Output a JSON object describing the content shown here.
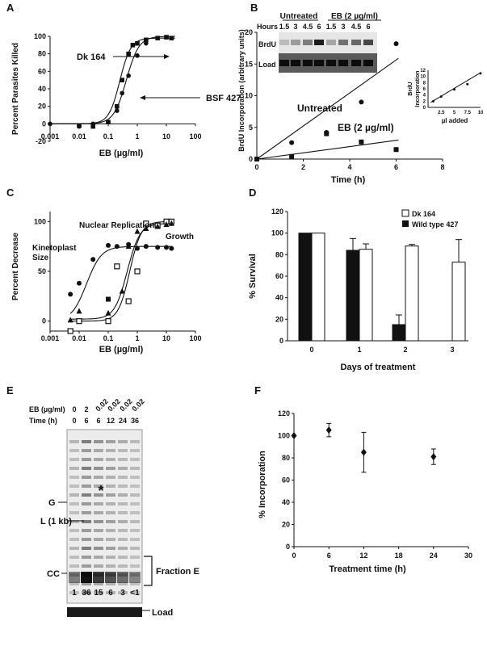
{
  "chart_data": [
    {
      "id": "A",
      "type": "scatter",
      "panel_label": "A",
      "xlabel": "EB (µg/ml)",
      "ylabel": "Percent Parasites Killed",
      "xscale": "log",
      "xlim": [
        0.001,
        100
      ],
      "ylim": [
        -20,
        100
      ],
      "xticks": [
        "0.001",
        "0.01",
        "0.1",
        "1",
        "10",
        "100"
      ],
      "yticks": [
        "-20",
        "0",
        "20",
        "40",
        "60",
        "80",
        "100"
      ],
      "annotations": [
        "Dk 164",
        "BSF 427"
      ],
      "series": [
        {
          "name": "Dk 164",
          "marker": "square",
          "x": [
            0.01,
            0.03,
            0.1,
            0.2,
            0.3,
            0.5,
            0.7,
            1.0,
            2.0,
            5.0,
            10.0,
            15.0
          ],
          "y": [
            -2,
            -3,
            2,
            20,
            50,
            80,
            90,
            92,
            96,
            98,
            99,
            98
          ]
        },
        {
          "name": "BSF 427",
          "marker": "circle",
          "x": [
            0.001,
            0.01,
            0.03,
            0.1,
            0.2,
            0.3,
            0.5,
            1.0,
            2.0,
            10.0
          ],
          "y": [
            0,
            -3,
            0,
            2,
            15,
            35,
            55,
            78,
            92,
            99
          ]
        }
      ]
    },
    {
      "id": "B",
      "type": "scatter",
      "panel_label": "B",
      "xlabel": "Time (h)",
      "ylabel": "BrdU Incorporation (arbitrary units)",
      "xlim": [
        0,
        8
      ],
      "ylim": [
        0,
        20
      ],
      "xticks": [
        "0",
        "2",
        "4",
        "6",
        "8"
      ],
      "yticks": [
        "0",
        "5",
        "10",
        "15",
        "20"
      ],
      "annotations": [
        "Untreated",
        "EB (2  µg/ml)"
      ],
      "series": [
        {
          "name": "Untreated",
          "marker": "circle",
          "x": [
            0,
            1.5,
            3,
            4.5,
            6
          ],
          "y": [
            0,
            2.6,
            4.2,
            9,
            18.2
          ]
        },
        {
          "name": "EB (2  µg/ml)",
          "marker": "square",
          "x": [
            0,
            1.5,
            3,
            4.5,
            6
          ],
          "y": [
            0,
            0.4,
            4.0,
            2.7,
            1.5
          ]
        }
      ],
      "blot": {
        "groups": [
          "Untreated",
          "EB (2 µg/ml)"
        ],
        "hours_label": "Hours",
        "hours": [
          "1.5",
          "3",
          "4.5",
          "6",
          "1.5",
          "3",
          "4.5",
          "6"
        ],
        "rows": [
          "BrdU",
          "Load"
        ]
      },
      "inset": {
        "type": "scatter",
        "xlabel": "µl added",
        "ylabel": "BrdU Incorporation",
        "xlim": [
          0,
          10
        ],
        "ylim": [
          0,
          12
        ],
        "xticks": [
          "2.5",
          "5",
          "7.5",
          "10"
        ],
        "yticks": [
          "0",
          "2",
          "4",
          "6",
          "8",
          "10",
          "12"
        ],
        "x": [
          1,
          2.5,
          5,
          7.5,
          10
        ],
        "y": [
          2,
          3.5,
          5.8,
          7.5,
          11
        ]
      }
    },
    {
      "id": "C",
      "type": "scatter",
      "panel_label": "C",
      "xlabel": "EB (µg/ml)",
      "ylabel": "Percent Decrease",
      "xscale": "log",
      "xlim": [
        0.001,
        100
      ],
      "ylim": [
        -10,
        110
      ],
      "xticks": [
        "0.001",
        "0.01",
        "0.1",
        "1",
        "10",
        "100"
      ],
      "yticks": [
        "0",
        "50",
        "100"
      ],
      "annotations": [
        "Nuclear Replication",
        "Growth",
        "Kinetoplast",
        "Size"
      ],
      "series": [
        {
          "name": "Kinetoplast Size",
          "marker": "circle",
          "x": [
            0.005,
            0.01,
            0.03,
            0.1,
            0.2,
            0.5,
            1,
            2,
            5,
            10,
            15
          ],
          "y": [
            27,
            38,
            62,
            76,
            75,
            77,
            73,
            75,
            74,
            74,
            73
          ]
        },
        {
          "name": "Nuclear Replication",
          "marker": "open-square",
          "x": [
            0.005,
            0.01,
            0.1,
            0.2,
            0.5,
            1,
            2,
            5,
            10,
            15
          ],
          "y": [
            -10,
            0,
            0,
            55,
            20,
            50,
            98,
            96,
            100,
            100
          ]
        },
        {
          "name": "Growth",
          "marker": "triangle",
          "x": [
            0.005,
            0.01,
            0.1,
            0.3,
            0.5,
            1,
            2,
            5,
            10,
            15
          ],
          "y": [
            1,
            10,
            8,
            30,
            75,
            90,
            93,
            95,
            97,
            98
          ]
        },
        {
          "name": "Growth-square",
          "marker": "square",
          "x": [
            0.1
          ],
          "y": [
            22
          ]
        }
      ]
    },
    {
      "id": "D",
      "type": "bar",
      "panel_label": "D",
      "xlabel": "Days of treatment",
      "ylabel": "% Survival",
      "ylim": [
        0,
        120
      ],
      "yticks": [
        "0",
        "20",
        "40",
        "60",
        "80",
        "100",
        "120"
      ],
      "categories": [
        "0",
        "1",
        "2",
        "3"
      ],
      "series": [
        {
          "name": "Wild type 427",
          "fill": "black",
          "values": [
            100,
            84,
            15,
            null
          ],
          "errors": [
            0,
            11,
            9,
            null
          ]
        },
        {
          "name": "Dk 164",
          "fill": "white",
          "values": [
            100,
            85,
            88,
            73
          ],
          "errors": [
            0,
            5,
            1.5,
            21
          ]
        }
      ],
      "legend": "top-right"
    },
    {
      "id": "E",
      "type": "blot",
      "panel_label": "E",
      "header_labels": [
        "EB (µg/ml)",
        "Time (h)"
      ],
      "eb_values": [
        "0",
        "2",
        "0.02",
        "0.02",
        "0.02",
        "0.02"
      ],
      "time_values": [
        "0",
        "6",
        "6",
        "12",
        "24",
        "36"
      ],
      "row_labels": [
        "G",
        "L (1 kb)",
        "CC"
      ],
      "star": "*",
      "bracket_label": "Fraction E",
      "quantities": [
        "1",
        "36",
        "15",
        "6",
        "3",
        "<1"
      ],
      "load_label": "Load"
    },
    {
      "id": "F",
      "type": "scatter",
      "panel_label": "F",
      "xlabel": "Treatment time (h)",
      "ylabel": "% Incorporation",
      "xlim": [
        0,
        30
      ],
      "ylim": [
        0,
        120
      ],
      "xticks": [
        "0",
        "6",
        "12",
        "18",
        "24",
        "30"
      ],
      "yticks": [
        "0",
        "20",
        "40",
        "60",
        "80",
        "100",
        "120"
      ],
      "series": [
        {
          "name": "",
          "marker": "diamond",
          "x": [
            0,
            6,
            12,
            24
          ],
          "y": [
            100,
            105,
            85,
            81
          ],
          "errors": [
            0,
            6,
            18,
            7
          ]
        }
      ]
    }
  ]
}
